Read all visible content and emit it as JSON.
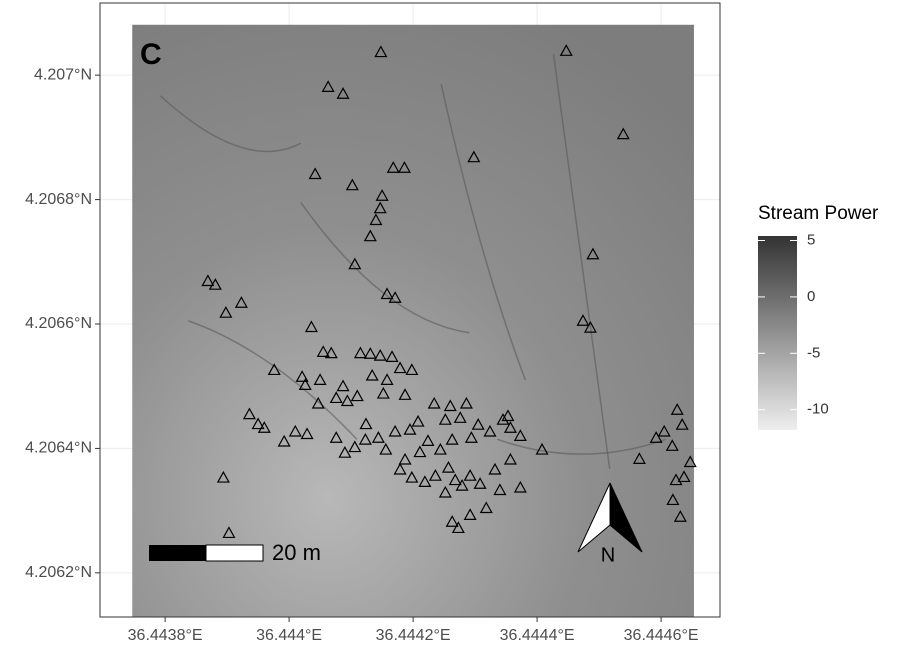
{
  "chart_data": {
    "type": "scatter",
    "panel_label": "C",
    "scale_bar_label": "20 m",
    "north_label": "N",
    "xlim": [
      36.443695,
      36.444695
    ],
    "ylim": [
      4.206129,
      4.207116
    ],
    "raster_extent": {
      "x": [
        36.443747,
        36.444653
      ],
      "y": [
        4.206129,
        4.207081
      ]
    },
    "xticks": [
      {
        "value": 36.4438,
        "label": "36.4438°E"
      },
      {
        "value": 36.444,
        "label": "36.444°E"
      },
      {
        "value": 36.4442,
        "label": "36.4442°E"
      },
      {
        "value": 36.4444,
        "label": "36.4444°E"
      },
      {
        "value": 36.4446,
        "label": "36.4446°E"
      }
    ],
    "yticks": [
      {
        "value": 4.2062,
        "label": "4.2062°N"
      },
      {
        "value": 4.2064,
        "label": "4.2064°N"
      },
      {
        "value": 4.2066,
        "label": "4.2066°N"
      },
      {
        "value": 4.2068,
        "label": "4.2068°N"
      },
      {
        "value": 4.207,
        "label": "4.207°N"
      }
    ],
    "grid": true,
    "marker_color": "#000000",
    "colorbar": {
      "title": "Stream Power",
      "lim": [
        -11.8,
        5.4
      ],
      "ticks": [
        5,
        0,
        -5,
        -10
      ],
      "colors": [
        "#eeeeee",
        "#333333"
      ]
    },
    "x": [
      36.444148,
      36.444447,
      36.444063,
      36.444087,
      36.444539,
      36.444298,
      36.444042,
      36.444102,
      36.444168,
      36.444186,
      36.44415,
      36.444147,
      36.44414,
      36.444131,
      36.44449,
      36.444106,
      36.443869,
      36.443881,
      36.443923,
      36.443898,
      36.444158,
      36.444171,
      36.444474,
      36.444486,
      36.444036,
      36.444055,
      36.444068,
      36.444115,
      36.444131,
      36.444147,
      36.444166,
      36.444179,
      36.444198,
      36.443976,
      36.444021,
      36.44405,
      36.444087,
      36.444134,
      36.444158,
      36.444026,
      36.444076,
      36.444094,
      36.44411,
      36.444152,
      36.444187,
      36.444234,
      36.44426,
      36.444286,
      36.443936,
      36.44395,
      36.44396,
      36.44401,
      36.444029,
      36.443992,
      36.444076,
      36.44409,
      36.444106,
      36.444123,
      36.444144,
      36.444156,
      36.444171,
      36.444195,
      36.444208,
      36.444252,
      36.444276,
      36.444305,
      36.444324,
      36.444345,
      36.444357,
      36.444373,
      36.444294,
      36.444263,
      36.444244,
      36.444211,
      36.444187,
      36.444179,
      36.444198,
      36.444219,
      36.444236,
      36.444257,
      36.444268,
      36.444279,
      36.444292,
      36.444308,
      36.444332,
      36.444357,
      36.444373,
      36.44434,
      36.444318,
      36.444292,
      36.444263,
      36.444273,
      36.444252,
      36.444408,
      36.444565,
      36.444592,
      36.444605,
      36.444626,
      36.444634,
      36.444618,
      36.444647,
      36.444624,
      36.444637,
      36.444619,
      36.444631,
      36.443894,
      36.443903,
      36.444224,
      36.444124,
      36.444047,
      36.444353
    ],
    "y": [
      4.207037,
      4.207039,
      4.206981,
      4.20697,
      4.206905,
      4.206868,
      4.206841,
      4.206823,
      4.206851,
      4.206851,
      4.206806,
      4.206786,
      4.206767,
      4.206741,
      4.206712,
      4.206696,
      4.206669,
      4.206663,
      4.206634,
      4.206618,
      4.206648,
      4.206642,
      4.206605,
      4.206594,
      4.206595,
      4.206555,
      4.206553,
      4.206553,
      4.206552,
      4.206549,
      4.206547,
      4.206529,
      4.206526,
      4.206526,
      4.206515,
      4.20651,
      4.2065,
      4.206517,
      4.20651,
      4.206502,
      4.206481,
      4.206476,
      4.206484,
      4.206488,
      4.206486,
      4.206472,
      4.206468,
      4.206472,
      4.206455,
      4.206439,
      4.206433,
      4.206427,
      4.206423,
      4.206411,
      4.206417,
      4.206393,
      4.206402,
      4.206414,
      4.206417,
      4.206398,
      4.206427,
      4.20643,
      4.206443,
      4.206446,
      4.206449,
      4.206438,
      4.206427,
      4.206446,
      4.206433,
      4.20642,
      4.206417,
      4.206414,
      4.206398,
      4.206394,
      4.206382,
      4.206366,
      4.206353,
      4.206346,
      4.206356,
      4.206369,
      4.206349,
      4.20634,
      4.206356,
      4.206343,
      4.206366,
      4.206382,
      4.206337,
      4.206333,
      4.206304,
      4.206293,
      4.206282,
      4.206272,
      4.206329,
      4.206398,
      4.206383,
      4.206417,
      4.206427,
      4.206462,
      4.206438,
      4.206404,
      4.206378,
      4.206349,
      4.206354,
      4.206317,
      4.20629,
      4.206353,
      4.206264,
      4.206412,
      4.206439,
      4.206472,
      4.206452
    ]
  }
}
